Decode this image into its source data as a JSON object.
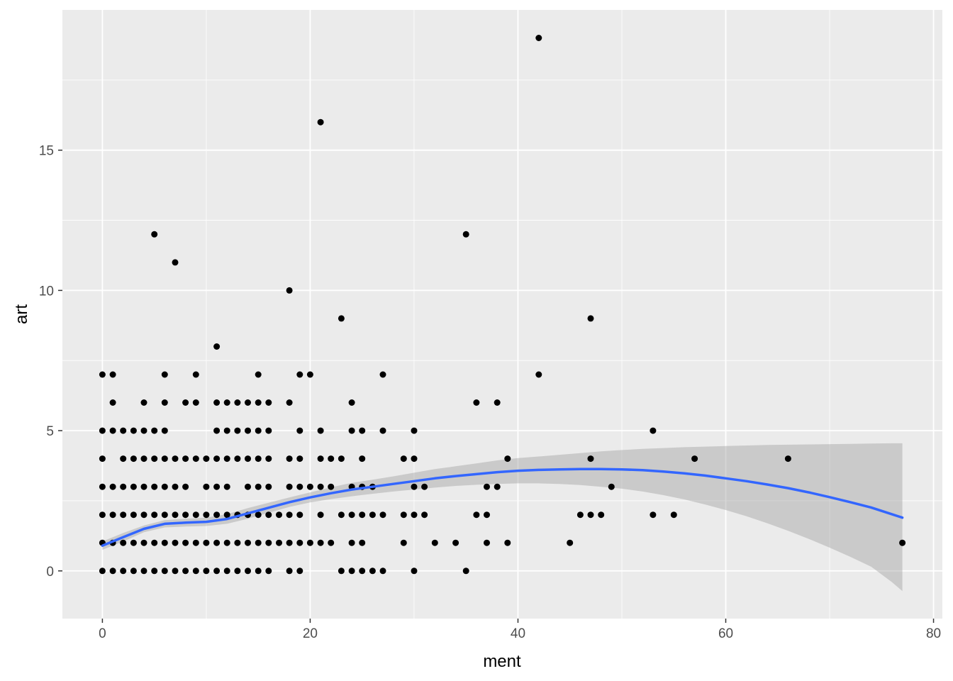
{
  "chart_data": {
    "type": "scatter",
    "xlabel": "ment",
    "ylabel": "art",
    "xlim": [
      -3.85,
      80.85
    ],
    "ylim": [
      -1.7,
      20.0
    ],
    "x_ticks": [
      0,
      20,
      40,
      60,
      80
    ],
    "y_ticks": [
      0,
      5,
      10,
      15
    ],
    "x_minor": [
      10,
      30,
      50,
      70
    ],
    "y_minor": [
      2.5,
      7.5,
      12.5,
      17.5
    ],
    "grid": true,
    "legend": "none",
    "colors": {
      "panel": "#ebebeb",
      "grid": "#ffffff",
      "point": "#000000",
      "smooth_line": "#3366ff",
      "ribbon": "#999999"
    },
    "points": [
      [
        0,
        7
      ],
      [
        0,
        5
      ],
      [
        0,
        4
      ],
      [
        0,
        3
      ],
      [
        0,
        2
      ],
      [
        0,
        1
      ],
      [
        0,
        0
      ],
      [
        1,
        7
      ],
      [
        1,
        6
      ],
      [
        1,
        5
      ],
      [
        1,
        3
      ],
      [
        1,
        2
      ],
      [
        1,
        1
      ],
      [
        1,
        0
      ],
      [
        2,
        5
      ],
      [
        2,
        4
      ],
      [
        2,
        3
      ],
      [
        2,
        2
      ],
      [
        2,
        1
      ],
      [
        2,
        0
      ],
      [
        3,
        5
      ],
      [
        3,
        4
      ],
      [
        3,
        3
      ],
      [
        3,
        2
      ],
      [
        3,
        1
      ],
      [
        3,
        0
      ],
      [
        4,
        6
      ],
      [
        4,
        5
      ],
      [
        4,
        4
      ],
      [
        4,
        3
      ],
      [
        4,
        2
      ],
      [
        4,
        1
      ],
      [
        4,
        0
      ],
      [
        5,
        12
      ],
      [
        5,
        5
      ],
      [
        5,
        4
      ],
      [
        5,
        3
      ],
      [
        5,
        2
      ],
      [
        5,
        1
      ],
      [
        5,
        0
      ],
      [
        6,
        7
      ],
      [
        6,
        6
      ],
      [
        6,
        5
      ],
      [
        6,
        4
      ],
      [
        6,
        3
      ],
      [
        6,
        2
      ],
      [
        6,
        1
      ],
      [
        6,
        0
      ],
      [
        7,
        11
      ],
      [
        7,
        4
      ],
      [
        7,
        3
      ],
      [
        7,
        2
      ],
      [
        7,
        1
      ],
      [
        7,
        0
      ],
      [
        8,
        6
      ],
      [
        8,
        4
      ],
      [
        8,
        3
      ],
      [
        8,
        2
      ],
      [
        8,
        1
      ],
      [
        8,
        0
      ],
      [
        9,
        7
      ],
      [
        9,
        6
      ],
      [
        9,
        4
      ],
      [
        9,
        2
      ],
      [
        9,
        1
      ],
      [
        9,
        0
      ],
      [
        10,
        4
      ],
      [
        10,
        3
      ],
      [
        10,
        2
      ],
      [
        10,
        1
      ],
      [
        10,
        0
      ],
      [
        11,
        8
      ],
      [
        11,
        6
      ],
      [
        11,
        5
      ],
      [
        11,
        4
      ],
      [
        11,
        3
      ],
      [
        11,
        2
      ],
      [
        11,
        1
      ],
      [
        11,
        0
      ],
      [
        12,
        6
      ],
      [
        12,
        5
      ],
      [
        12,
        4
      ],
      [
        12,
        3
      ],
      [
        12,
        2
      ],
      [
        12,
        1
      ],
      [
        12,
        0
      ],
      [
        13,
        6
      ],
      [
        13,
        5
      ],
      [
        13,
        4
      ],
      [
        13,
        2
      ],
      [
        13,
        1
      ],
      [
        13,
        0
      ],
      [
        14,
        6
      ],
      [
        14,
        5
      ],
      [
        14,
        4
      ],
      [
        14,
        3
      ],
      [
        14,
        2
      ],
      [
        14,
        1
      ],
      [
        14,
        0
      ],
      [
        15,
        7
      ],
      [
        15,
        6
      ],
      [
        15,
        5
      ],
      [
        15,
        4
      ],
      [
        15,
        3
      ],
      [
        15,
        2
      ],
      [
        15,
        1
      ],
      [
        15,
        0
      ],
      [
        16,
        6
      ],
      [
        16,
        5
      ],
      [
        16,
        4
      ],
      [
        16,
        3
      ],
      [
        16,
        2
      ],
      [
        16,
        1
      ],
      [
        16,
        0
      ],
      [
        17,
        2
      ],
      [
        17,
        1
      ],
      [
        18,
        10
      ],
      [
        18,
        6
      ],
      [
        18,
        4
      ],
      [
        18,
        3
      ],
      [
        18,
        2
      ],
      [
        18,
        1
      ],
      [
        18,
        0
      ],
      [
        19,
        7
      ],
      [
        19,
        5
      ],
      [
        19,
        4
      ],
      [
        19,
        3
      ],
      [
        19,
        2
      ],
      [
        19,
        1
      ],
      [
        19,
        0
      ],
      [
        20,
        7
      ],
      [
        20,
        3
      ],
      [
        20,
        1
      ],
      [
        21,
        16
      ],
      [
        21,
        5
      ],
      [
        21,
        4
      ],
      [
        21,
        3
      ],
      [
        21,
        2
      ],
      [
        21,
        1
      ],
      [
        22,
        4
      ],
      [
        22,
        3
      ],
      [
        22,
        1
      ],
      [
        23,
        9
      ],
      [
        23,
        4
      ],
      [
        23,
        2
      ],
      [
        23,
        0
      ],
      [
        24,
        6
      ],
      [
        24,
        5
      ],
      [
        24,
        3
      ],
      [
        24,
        2
      ],
      [
        24,
        1
      ],
      [
        24,
        0
      ],
      [
        25,
        5
      ],
      [
        25,
        4
      ],
      [
        25,
        3
      ],
      [
        25,
        2
      ],
      [
        25,
        1
      ],
      [
        25,
        0
      ],
      [
        26,
        3
      ],
      [
        26,
        2
      ],
      [
        26,
        0
      ],
      [
        27,
        7
      ],
      [
        27,
        5
      ],
      [
        27,
        2
      ],
      [
        27,
        0
      ],
      [
        29,
        4
      ],
      [
        29,
        2
      ],
      [
        29,
        1
      ],
      [
        30,
        5
      ],
      [
        30,
        4
      ],
      [
        30,
        3
      ],
      [
        30,
        2
      ],
      [
        30,
        0
      ],
      [
        31,
        3
      ],
      [
        31,
        2
      ],
      [
        32,
        1
      ],
      [
        34,
        1
      ],
      [
        35,
        12
      ],
      [
        35,
        0
      ],
      [
        36,
        6
      ],
      [
        36,
        2
      ],
      [
        37,
        3
      ],
      [
        37,
        2
      ],
      [
        37,
        1
      ],
      [
        38,
        6
      ],
      [
        38,
        3
      ],
      [
        39,
        4
      ],
      [
        39,
        1
      ],
      [
        42,
        19
      ],
      [
        42,
        7
      ],
      [
        45,
        1
      ],
      [
        46,
        2
      ],
      [
        47,
        9
      ],
      [
        47,
        4
      ],
      [
        47,
        2
      ],
      [
        48,
        2
      ],
      [
        49,
        3
      ],
      [
        53,
        5
      ],
      [
        53,
        2
      ],
      [
        55,
        2
      ],
      [
        57,
        4
      ],
      [
        66,
        4
      ],
      [
        77,
        1
      ]
    ],
    "smooth": {
      "x": [
        0,
        2,
        4,
        6,
        8,
        10,
        12,
        14,
        16,
        18,
        20,
        22,
        24,
        26,
        28,
        30,
        32,
        34,
        36,
        38,
        40,
        42,
        44,
        46,
        48,
        50,
        52,
        54,
        56,
        58,
        60,
        62,
        64,
        66,
        68,
        70,
        72,
        74,
        76,
        77
      ],
      "y": [
        0.9,
        1.2,
        1.5,
        1.68,
        1.72,
        1.75,
        1.85,
        2.05,
        2.25,
        2.45,
        2.62,
        2.77,
        2.9,
        3.0,
        3.1,
        3.2,
        3.3,
        3.38,
        3.45,
        3.52,
        3.57,
        3.6,
        3.62,
        3.63,
        3.63,
        3.62,
        3.59,
        3.54,
        3.48,
        3.4,
        3.3,
        3.2,
        3.08,
        2.95,
        2.8,
        2.63,
        2.45,
        2.26,
        2.02,
        1.9
      ],
      "lower": [
        0.75,
        1.05,
        1.38,
        1.55,
        1.58,
        1.6,
        1.68,
        1.86,
        2.07,
        2.28,
        2.44,
        2.56,
        2.66,
        2.75,
        2.83,
        2.9,
        2.97,
        3.03,
        3.07,
        3.1,
        3.12,
        3.12,
        3.1,
        3.06,
        3.0,
        2.93,
        2.83,
        2.7,
        2.55,
        2.37,
        2.17,
        1.95,
        1.7,
        1.43,
        1.14,
        0.83,
        0.5,
        0.15,
        -0.4,
        -0.72
      ],
      "upper": [
        1.05,
        1.35,
        1.62,
        1.81,
        1.86,
        1.9,
        2.02,
        2.24,
        2.43,
        2.62,
        2.8,
        2.98,
        3.14,
        3.25,
        3.37,
        3.5,
        3.63,
        3.73,
        3.83,
        3.94,
        4.02,
        4.08,
        4.14,
        4.2,
        4.26,
        4.31,
        4.35,
        4.38,
        4.41,
        4.43,
        4.45,
        4.47,
        4.49,
        4.5,
        4.51,
        4.52,
        4.53,
        4.54,
        4.55,
        4.55
      ]
    }
  }
}
